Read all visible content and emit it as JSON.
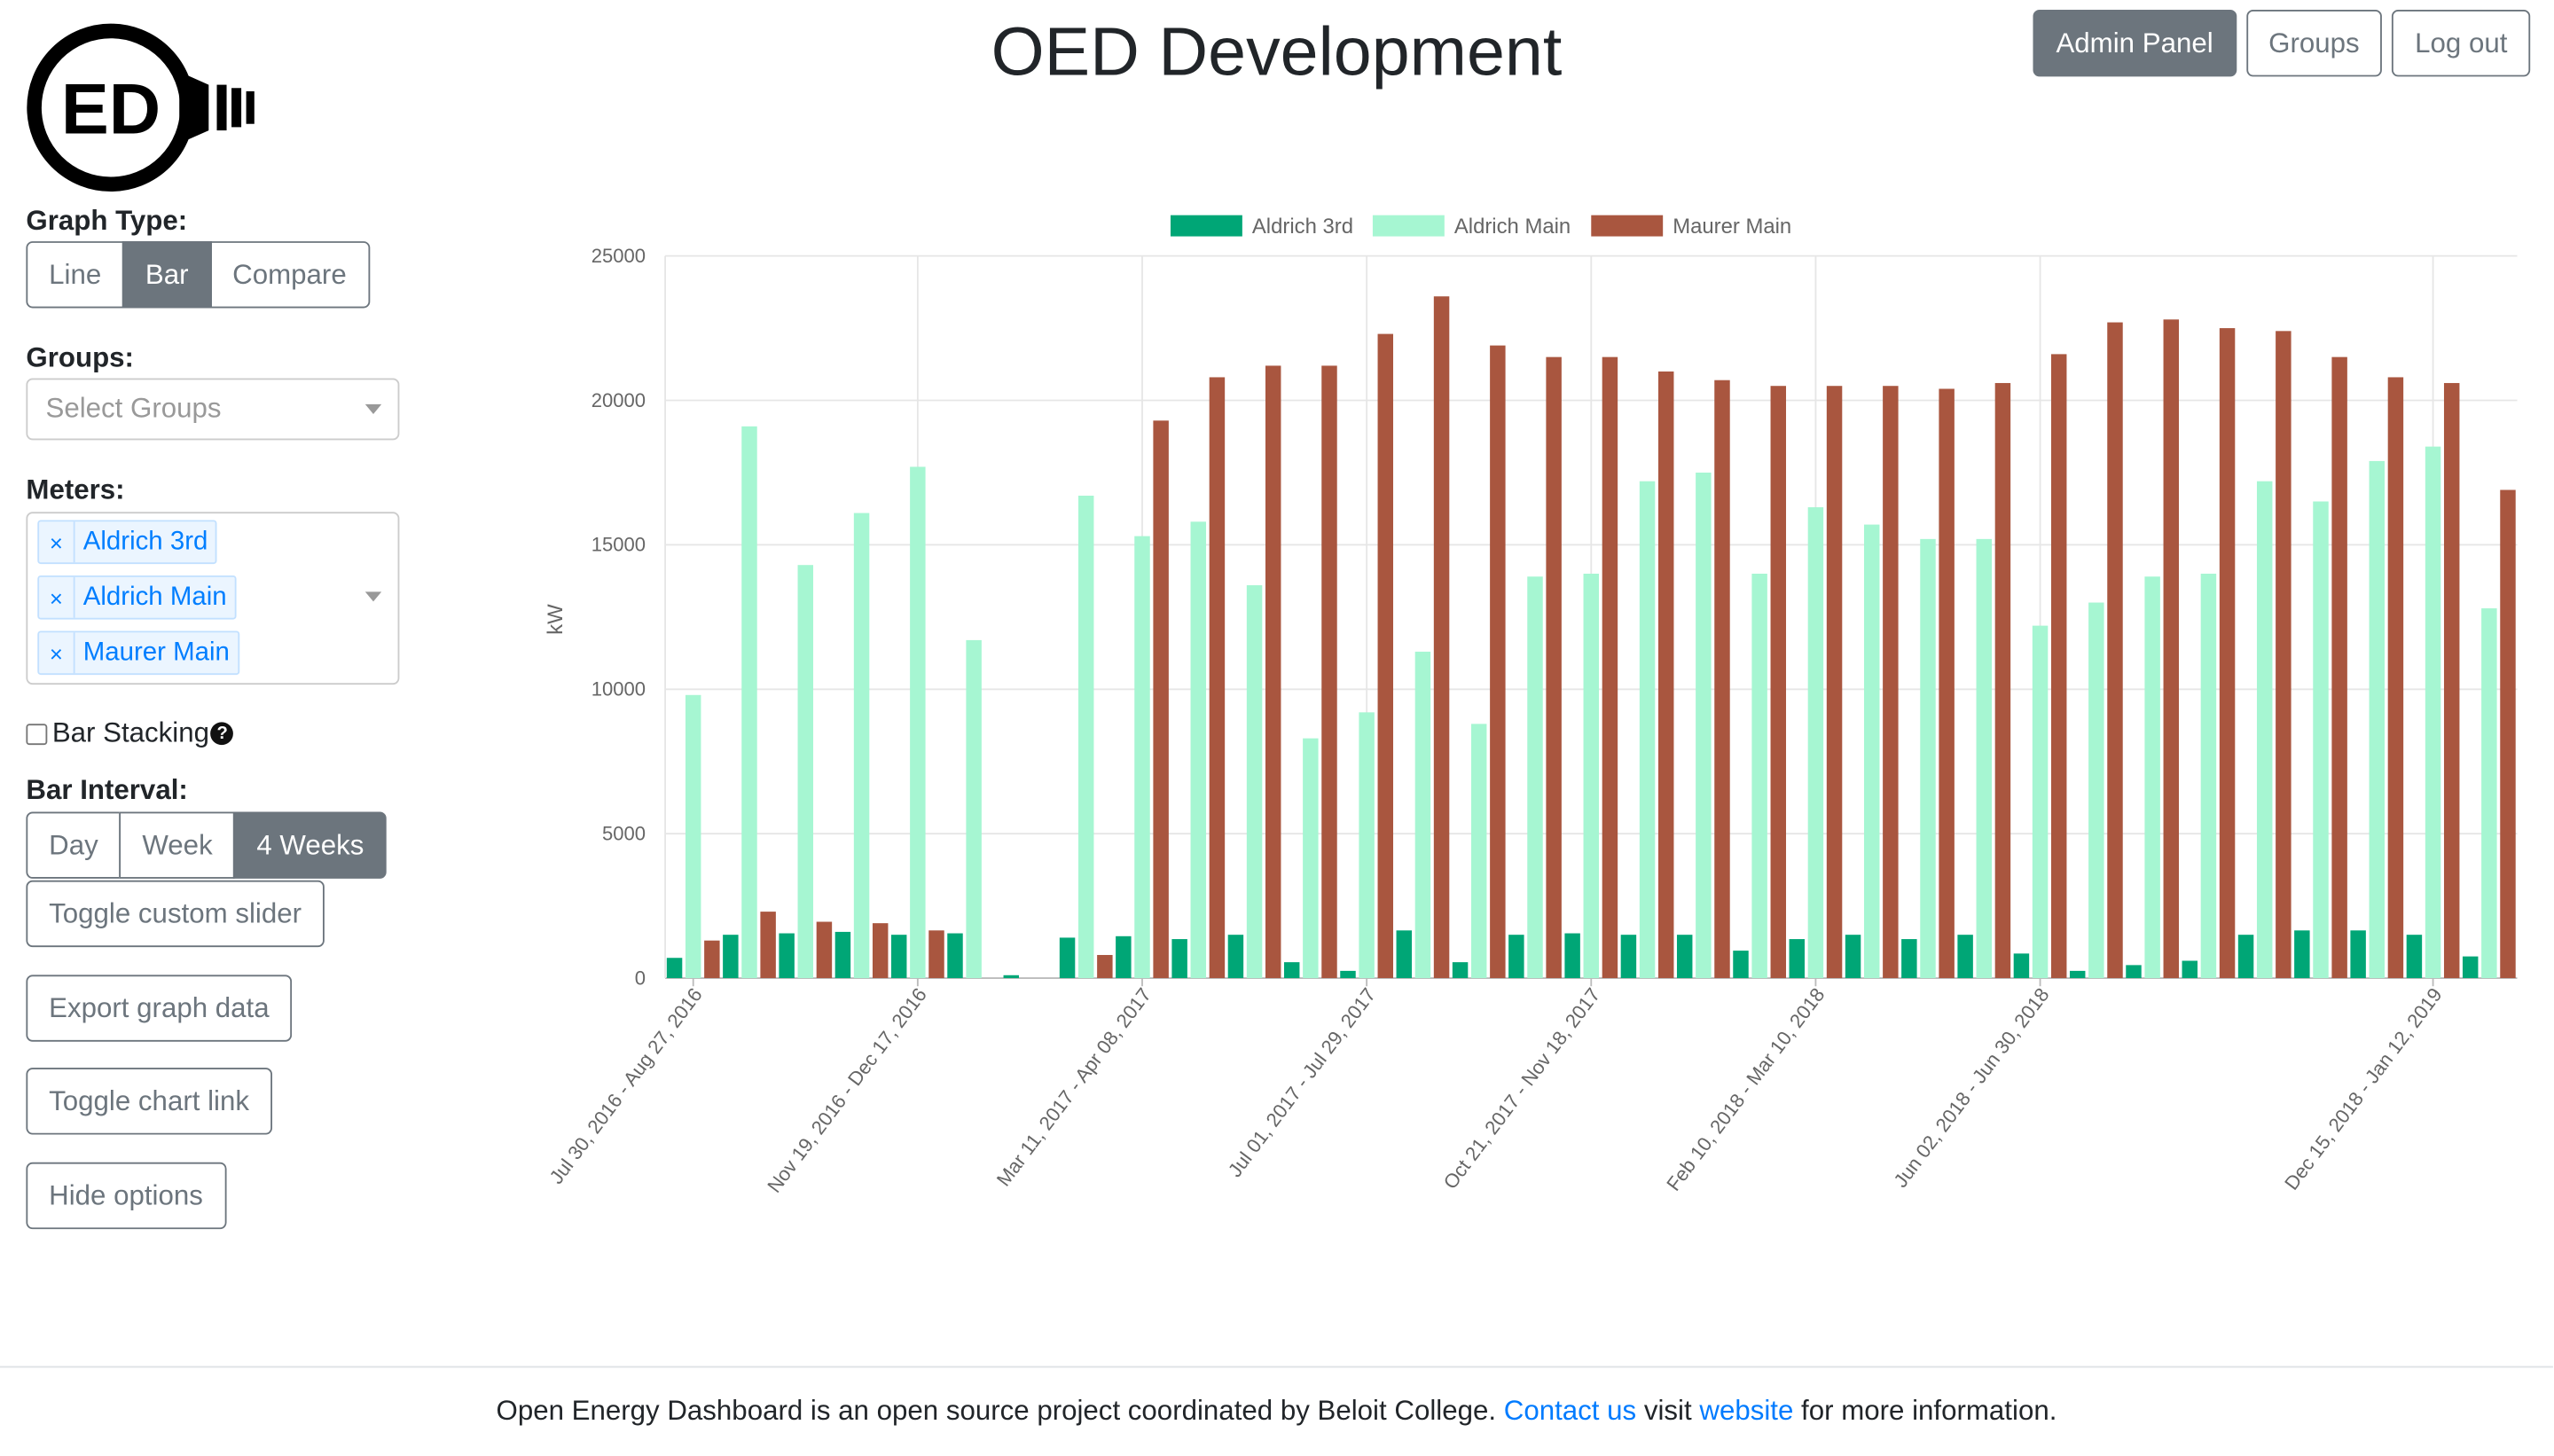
{
  "header": {
    "logo_text": "ED",
    "title": "OED Development",
    "buttons": {
      "admin": "Admin Panel",
      "groups": "Groups",
      "logout": "Log out"
    }
  },
  "sidebar": {
    "graph_type_label": "Graph Type:",
    "graph_types": [
      "Line",
      "Bar",
      "Compare"
    ],
    "graph_type_selected": "Bar",
    "groups_label": "Groups:",
    "groups_placeholder": "Select Groups",
    "meters_label": "Meters:",
    "meters": [
      "Aldrich 3rd",
      "Aldrich Main",
      "Maurer Main"
    ],
    "tag_remove": "×",
    "bar_stacking_label": "Bar Stacking",
    "bar_stacking_checked": false,
    "help_icon_text": "?",
    "bar_interval_label": "Bar Interval:",
    "bar_intervals": [
      "Day",
      "Week",
      "4 Weeks"
    ],
    "bar_interval_selected": "4 Weeks",
    "toggle_slider": "Toggle custom slider",
    "export_data": "Export graph data",
    "toggle_link": "Toggle chart link",
    "hide_options": "Hide options"
  },
  "colors": {
    "aldrich_3rd": "#00a676",
    "aldrich_main": "#a6f6d2",
    "maurer_main": "#a9563f",
    "secondary": "#6c757d",
    "link": "#007bff"
  },
  "chart_data": {
    "type": "bar",
    "ylabel": "kW",
    "ylim": [
      0,
      25000
    ],
    "yticks": [
      0,
      5000,
      10000,
      15000,
      20000,
      25000
    ],
    "grid": true,
    "legend_position": "top-center",
    "x_tick_labels": [
      "Jul 30, 2016 - Aug 27, 2016",
      "Nov 19, 2016 - Dec 17, 2016",
      "Mar 11, 2017 - Apr 08, 2017",
      "Jul 01, 2017 - Jul 29, 2017",
      "Oct 21, 2017 - Nov 18, 2017",
      "Feb 10, 2018 - Mar 10, 2018",
      "Jun 02, 2018 - Jun 30, 2018",
      "Dec 15, 2018 - Jan 12, 2019"
    ],
    "x_tick_indices": [
      0,
      4,
      8,
      12,
      16,
      20,
      24,
      31
    ],
    "series": [
      {
        "name": "Aldrich 3rd",
        "values": [
          700,
          1500,
          1550,
          1600,
          1500,
          1550,
          100,
          1400,
          1450,
          1350,
          1500,
          550,
          250,
          1650,
          550,
          1500,
          1550,
          1500,
          1500,
          950,
          1350,
          1500,
          1350,
          1500,
          850,
          250,
          450,
          600,
          1500,
          1650,
          1650,
          1500,
          750
        ]
      },
      {
        "name": "Aldrich Main",
        "values": [
          9800,
          19100,
          14300,
          16100,
          17700,
          11700,
          0,
          16700,
          15300,
          15800,
          13600,
          8300,
          9200,
          11300,
          8800,
          13900,
          14000,
          17200,
          17500,
          14000,
          16300,
          15700,
          15200,
          15200,
          12200,
          13000,
          13900,
          14000,
          17200,
          16500,
          17900,
          18400,
          12800
        ]
      },
      {
        "name": "Maurer Main",
        "values": [
          1300,
          2300,
          1950,
          1900,
          1650,
          0,
          0,
          800,
          19300,
          20800,
          21200,
          21200,
          22300,
          23600,
          21900,
          21500,
          21500,
          21000,
          20700,
          20500,
          20500,
          20500,
          20400,
          20600,
          21600,
          22700,
          22800,
          22500,
          22400,
          21500,
          20800,
          20600,
          16900
        ]
      }
    ]
  },
  "footer": {
    "text_before": "Open Energy Dashboard is an open source project coordinated by Beloit College.",
    "contact_link": "Contact us",
    "text_middle": "visit",
    "website_link": "website",
    "text_after": "for more information."
  }
}
